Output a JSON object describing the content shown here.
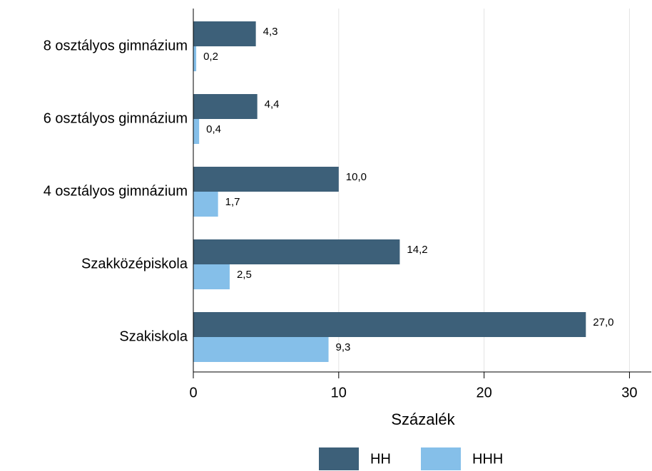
{
  "chart_data": {
    "type": "bar",
    "orientation": "horizontal",
    "categories": [
      "8 osztályos gimnázium",
      "6 osztályos gimnázium",
      "4 osztályos gimnázium",
      "Szakközépiskola",
      "Szakiskola"
    ],
    "series": [
      {
        "name": "HH",
        "color": "#3d6079",
        "values": [
          4.3,
          4.4,
          10.0,
          14.2,
          27.0
        ],
        "value_labels": [
          "4,3",
          "4,4",
          "10,0",
          "14,2",
          "27,0"
        ]
      },
      {
        "name": "HHH",
        "color": "#85bfe9",
        "values": [
          0.2,
          0.4,
          1.7,
          2.5,
          9.3
        ],
        "value_labels": [
          "0,2",
          "0,4",
          "1,7",
          "2,5",
          "9,3"
        ]
      }
    ],
    "x_label": "Százalék",
    "xlim": [
      0,
      31.5
    ],
    "xticks": [
      0,
      10,
      20,
      30
    ],
    "grid": true,
    "legend": "bottom"
  }
}
